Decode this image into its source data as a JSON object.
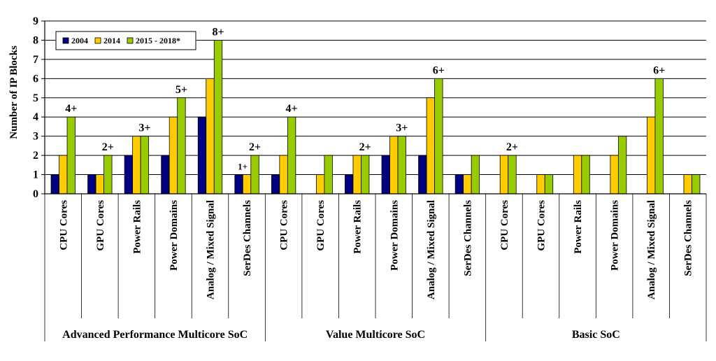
{
  "chart_data": {
    "type": "bar",
    "ylabel": "Number of IP Blocks",
    "ylim": [
      0,
      9
    ],
    "yticks": [
      0,
      1,
      2,
      3,
      4,
      5,
      6,
      7,
      8,
      9
    ],
    "grid": true,
    "legend_position": "top-left",
    "groups": [
      {
        "name": "Advanced Performance Multicore SoC",
        "categories": [
          "CPU Cores",
          "GPU Cores",
          "Power Rails",
          "Power Domains",
          "Analog / Mixed Signal",
          "SerDes Channels"
        ]
      },
      {
        "name": "Value Multicore SoC",
        "categories": [
          "CPU Cores",
          "GPU Cores",
          "Power Rails",
          "Power Domains",
          "Analog / Mixed Signal",
          "SerDes Channels"
        ]
      },
      {
        "name": "Basic SoC",
        "categories": [
          "CPU Cores",
          "GPU Cores",
          "Power Rails",
          "Power Domains",
          "Analog / Mixed Signal",
          "SerDes Channels"
        ]
      }
    ],
    "series": [
      {
        "name": "2004",
        "color": "#000080",
        "values": [
          1,
          1,
          2,
          2,
          4,
          1,
          1,
          0,
          1,
          2,
          2,
          1,
          0,
          0,
          0,
          0,
          0,
          0
        ]
      },
      {
        "name": "2014",
        "color": "#FFCC00",
        "values": [
          2,
          1,
          3,
          4,
          6,
          1,
          2,
          1,
          2,
          3,
          5,
          1,
          2,
          1,
          2,
          2,
          4,
          1
        ]
      },
      {
        "name": "2015 - 2018*",
        "color": "#99CC00",
        "values": [
          4,
          2,
          3,
          5,
          8,
          2,
          4,
          2,
          2,
          3,
          6,
          2,
          2,
          1,
          2,
          3,
          6,
          1
        ]
      }
    ],
    "annotations": [
      {
        "category_index": 0,
        "text": "4+",
        "value": 4
      },
      {
        "category_index": 1,
        "text": "2+",
        "value": 2
      },
      {
        "category_index": 2,
        "text": "3+",
        "value": 3
      },
      {
        "category_index": 3,
        "text": "5+",
        "value": 5
      },
      {
        "category_index": 4,
        "text": "8+",
        "value": 8
      },
      {
        "category_index": 5,
        "text": "2+",
        "value": 2
      },
      {
        "category_index": 5,
        "text": "1+",
        "value": 1,
        "series_index": 1,
        "small": true
      },
      {
        "category_index": 6,
        "text": "4+",
        "value": 4
      },
      {
        "category_index": 8,
        "text": "2+",
        "value": 2
      },
      {
        "category_index": 9,
        "text": "3+",
        "value": 3
      },
      {
        "category_index": 10,
        "text": "6+",
        "value": 6
      },
      {
        "category_index": 12,
        "text": "2+",
        "value": 2
      },
      {
        "category_index": 16,
        "text": "6+",
        "value": 6
      }
    ]
  }
}
